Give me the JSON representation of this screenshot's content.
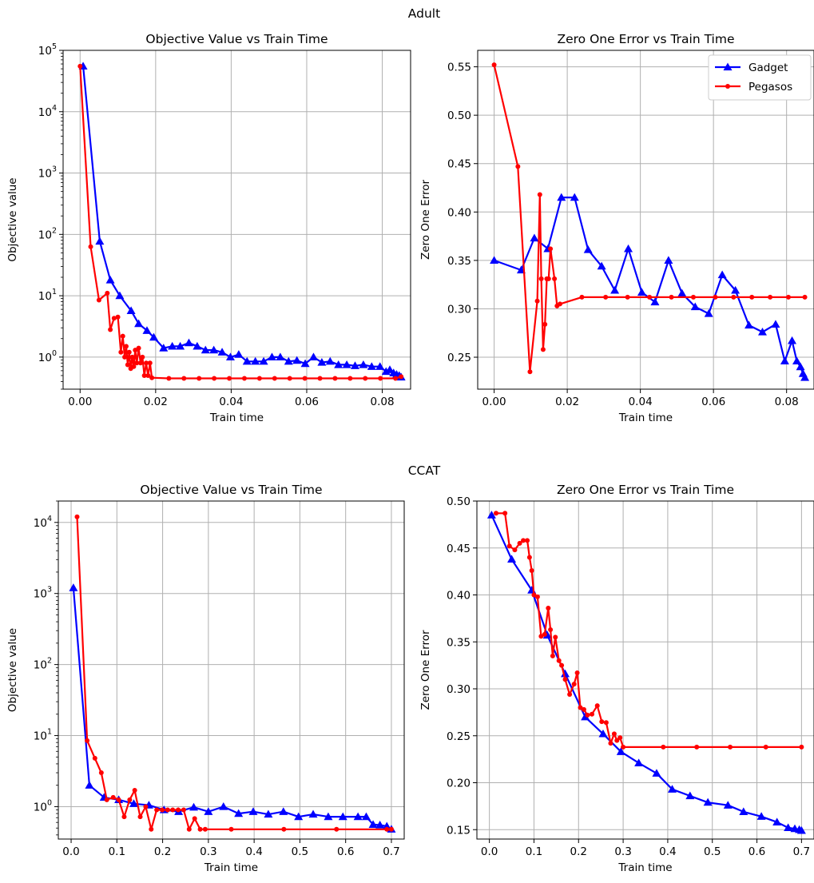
{
  "figures": [
    {
      "suptitle": "Adult"
    },
    {
      "suptitle": "CCAT"
    }
  ],
  "colors": {
    "gadget": "#0000ff",
    "pegasos": "#ff0000",
    "grid": "#b0b0b0"
  },
  "chart_data": [
    {
      "type": "line",
      "title": "Objective Value vs Train Time",
      "xlabel": "Train time",
      "ylabel": "Objective value",
      "yscale": "log",
      "xlim": [
        -0.0045,
        0.0875
      ],
      "ylim": [
        0.3,
        100000
      ],
      "xticks": [
        0.0,
        0.02,
        0.04,
        0.06,
        0.08
      ],
      "xtick_labels": [
        "0.00",
        "0.02",
        "0.04",
        "0.06",
        "0.08"
      ],
      "yticks": [
        1,
        10,
        100,
        1000,
        10000,
        100000
      ],
      "ytick_labels": [
        {
          "base": "10",
          "exp": "0"
        },
        {
          "base": "10",
          "exp": "1"
        },
        {
          "base": "10",
          "exp": "2"
        },
        {
          "base": "10",
          "exp": "3"
        },
        {
          "base": "10",
          "exp": "4"
        },
        {
          "base": "10",
          "exp": "5"
        }
      ],
      "grid": true,
      "series": [
        {
          "name": "Gadget",
          "color": "#0000ff",
          "marker": "triangle",
          "x": [
            0.0008,
            0.0052,
            0.008,
            0.0105,
            0.0135,
            0.0155,
            0.0177,
            0.0195,
            0.0221,
            0.0244,
            0.0265,
            0.0288,
            0.031,
            0.0332,
            0.0354,
            0.0376,
            0.0398,
            0.042,
            0.0442,
            0.0464,
            0.0486,
            0.0508,
            0.053,
            0.0552,
            0.0574,
            0.0596,
            0.0618,
            0.064,
            0.0662,
            0.0684,
            0.0706,
            0.0728,
            0.075,
            0.0772,
            0.0794,
            0.081,
            0.082,
            0.083,
            0.0838,
            0.0845,
            0.085
          ],
          "y": [
            55000,
            77,
            18,
            10,
            5.7,
            3.5,
            2.7,
            2.1,
            1.4,
            1.5,
            1.5,
            1.7,
            1.5,
            1.3,
            1.3,
            1.2,
            1.0,
            1.1,
            0.85,
            0.85,
            0.85,
            1.0,
            1.0,
            0.85,
            0.88,
            0.78,
            1.0,
            0.82,
            0.85,
            0.75,
            0.75,
            0.72,
            0.75,
            0.7,
            0.7,
            0.58,
            0.62,
            0.55,
            0.52,
            0.5,
            0.47
          ]
        },
        {
          "name": "Pegasos",
          "color": "#ff0000",
          "marker": "dot",
          "x": [
            0.0,
            0.0028,
            0.005,
            0.0072,
            0.008,
            0.009,
            0.01,
            0.0108,
            0.0113,
            0.0118,
            0.0122,
            0.0126,
            0.013,
            0.0134,
            0.0138,
            0.0142,
            0.0146,
            0.015,
            0.0155,
            0.016,
            0.0165,
            0.017,
            0.0175,
            0.018,
            0.0185,
            0.019,
            0.0235,
            0.0275,
            0.0315,
            0.0355,
            0.0395,
            0.0435,
            0.0475,
            0.0515,
            0.0555,
            0.0595,
            0.0635,
            0.0675,
            0.0715,
            0.0755,
            0.0795,
            0.0835,
            0.085
          ],
          "y": [
            55000,
            63,
            8.5,
            11,
            2.8,
            4.3,
            4.5,
            1.2,
            2.2,
            1.0,
            1.5,
            0.75,
            1.2,
            0.65,
            1.0,
            0.7,
            1.3,
            0.8,
            1.4,
            0.8,
            1.0,
            0.5,
            0.8,
            0.5,
            0.8,
            0.46,
            0.45,
            0.45,
            0.45,
            0.45,
            0.45,
            0.45,
            0.45,
            0.45,
            0.45,
            0.45,
            0.45,
            0.45,
            0.45,
            0.45,
            0.45,
            0.45,
            0.48
          ]
        }
      ]
    },
    {
      "type": "line",
      "title": "Zero One Error vs Train Time",
      "xlabel": "Train time",
      "ylabel": "Zero One Error",
      "xlim": [
        -0.0045,
        0.0875
      ],
      "ylim": [
        0.217,
        0.567
      ],
      "xticks": [
        0.0,
        0.02,
        0.04,
        0.06,
        0.08
      ],
      "xtick_labels": [
        "0.00",
        "0.02",
        "0.04",
        "0.06",
        "0.08"
      ],
      "yticks": [
        0.25,
        0.3,
        0.35,
        0.4,
        0.45,
        0.5,
        0.55
      ],
      "ytick_labels": [
        "0.25",
        "0.30",
        "0.35",
        "0.40",
        "0.45",
        "0.50",
        "0.55"
      ],
      "grid": true,
      "legend": "top-right",
      "series": [
        {
          "name": "Gadget",
          "color": "#0000ff",
          "marker": "triangle",
          "x": [
            0.0,
            0.0074,
            0.011,
            0.0147,
            0.0184,
            0.022,
            0.0257,
            0.0294,
            0.033,
            0.0367,
            0.0404,
            0.044,
            0.0477,
            0.0514,
            0.055,
            0.0587,
            0.0624,
            0.066,
            0.0697,
            0.0734,
            0.077,
            0.0795,
            0.0815,
            0.0828,
            0.0838,
            0.0845,
            0.085
          ],
          "y": [
            0.35,
            0.34,
            0.373,
            0.362,
            0.415,
            0.415,
            0.361,
            0.344,
            0.319,
            0.362,
            0.317,
            0.307,
            0.35,
            0.316,
            0.302,
            0.295,
            0.335,
            0.319,
            0.283,
            0.276,
            0.284,
            0.246,
            0.267,
            0.246,
            0.24,
            0.233,
            0.229
          ]
        },
        {
          "name": "Pegasos",
          "color": "#ff0000",
          "marker": "dot",
          "x": [
            0.0,
            0.0065,
            0.0098,
            0.0118,
            0.0125,
            0.0129,
            0.0134,
            0.0139,
            0.0144,
            0.0149,
            0.0154,
            0.0165,
            0.0172,
            0.018,
            0.024,
            0.0305,
            0.0365,
            0.0425,
            0.0485,
            0.0545,
            0.0605,
            0.0655,
            0.0705,
            0.0755,
            0.0805,
            0.085
          ],
          "y": [
            0.552,
            0.447,
            0.235,
            0.308,
            0.418,
            0.331,
            0.258,
            0.284,
            0.331,
            0.331,
            0.362,
            0.331,
            0.303,
            0.305,
            0.312,
            0.312,
            0.312,
            0.312,
            0.312,
            0.312,
            0.312,
            0.312,
            0.312,
            0.312,
            0.312,
            0.312
          ]
        }
      ]
    },
    {
      "type": "line",
      "title": "Objective Value vs Train Time",
      "xlabel": "Train time",
      "ylabel": "Objective value",
      "yscale": "log",
      "xlim": [
        -0.028,
        0.728
      ],
      "ylim": [
        0.35,
        20000
      ],
      "xticks": [
        0.0,
        0.1,
        0.2,
        0.3,
        0.4,
        0.5,
        0.6,
        0.7
      ],
      "xtick_labels": [
        "0.0",
        "0.1",
        "0.2",
        "0.3",
        "0.4",
        "0.5",
        "0.6",
        "0.7"
      ],
      "yticks": [
        1,
        10,
        100,
        1000,
        10000
      ],
      "ytick_labels": [
        {
          "base": "10",
          "exp": "0"
        },
        {
          "base": "10",
          "exp": "1"
        },
        {
          "base": "10",
          "exp": "2"
        },
        {
          "base": "10",
          "exp": "3"
        },
        {
          "base": "10",
          "exp": "4"
        }
      ],
      "grid": true,
      "series": [
        {
          "name": "Gadget",
          "color": "#0000ff",
          "marker": "triangle",
          "x": [
            0.005,
            0.04,
            0.072,
            0.104,
            0.137,
            0.17,
            0.203,
            0.235,
            0.268,
            0.3,
            0.333,
            0.366,
            0.398,
            0.431,
            0.464,
            0.497,
            0.529,
            0.562,
            0.594,
            0.627,
            0.645,
            0.66,
            0.675,
            0.69,
            0.7
          ],
          "y": [
            1200,
            2.0,
            1.35,
            1.25,
            1.1,
            1.05,
            0.9,
            0.85,
            0.98,
            0.85,
            1.0,
            0.8,
            0.85,
            0.78,
            0.85,
            0.72,
            0.78,
            0.72,
            0.72,
            0.72,
            0.72,
            0.56,
            0.55,
            0.53,
            0.48
          ]
        },
        {
          "name": "Pegasos",
          "color": "#ff0000",
          "marker": "dot",
          "x": [
            0.013,
            0.035,
            0.052,
            0.066,
            0.078,
            0.092,
            0.104,
            0.116,
            0.128,
            0.139,
            0.151,
            0.163,
            0.175,
            0.187,
            0.199,
            0.211,
            0.222,
            0.234,
            0.246,
            0.258,
            0.27,
            0.282,
            0.293,
            0.35,
            0.465,
            0.58,
            0.69,
            0.7
          ],
          "y": [
            12000,
            8.5,
            4.8,
            3.0,
            1.25,
            1.35,
            1.25,
            0.72,
            1.25,
            1.7,
            0.72,
            1.0,
            0.48,
            0.9,
            0.9,
            0.9,
            0.9,
            0.9,
            0.9,
            0.48,
            0.68,
            0.48,
            0.48,
            0.48,
            0.48,
            0.48,
            0.48,
            0.48
          ]
        }
      ]
    },
    {
      "type": "line",
      "title": "Zero One Error vs Train Time",
      "xlabel": "Train time",
      "ylabel": "Zero One Error",
      "xlim": [
        -0.028,
        0.728
      ],
      "ylim": [
        0.14,
        0.5
      ],
      "xticks": [
        0.0,
        0.1,
        0.2,
        0.3,
        0.4,
        0.5,
        0.6,
        0.7
      ],
      "xtick_labels": [
        "0.0",
        "0.1",
        "0.2",
        "0.3",
        "0.4",
        "0.5",
        "0.6",
        "0.7"
      ],
      "yticks": [
        0.15,
        0.2,
        0.25,
        0.3,
        0.35,
        0.4,
        0.45,
        0.5
      ],
      "ytick_labels": [
        "0.15",
        "0.20",
        "0.25",
        "0.30",
        "0.35",
        "0.40",
        "0.45",
        "0.50"
      ],
      "grid": true,
      "series": [
        {
          "name": "Gadget",
          "color": "#0000ff",
          "marker": "triangle",
          "x": [
            0.005,
            0.05,
            0.095,
            0.13,
            0.17,
            0.215,
            0.255,
            0.295,
            0.335,
            0.375,
            0.41,
            0.45,
            0.49,
            0.535,
            0.57,
            0.61,
            0.645,
            0.67,
            0.685,
            0.695,
            0.7
          ],
          "y": [
            0.485,
            0.438,
            0.405,
            0.357,
            0.316,
            0.27,
            0.252,
            0.233,
            0.221,
            0.21,
            0.193,
            0.186,
            0.179,
            0.176,
            0.169,
            0.164,
            0.158,
            0.152,
            0.151,
            0.15,
            0.149
          ],
          "marker_every": [
            0,
            1,
            2,
            3,
            4,
            5,
            6,
            7,
            8,
            9,
            10,
            11,
            12,
            13,
            14,
            15,
            16,
            17,
            18,
            19,
            20
          ]
        },
        {
          "name": "Pegasos",
          "color": "#ff0000",
          "marker": "dot",
          "x": [
            0.015,
            0.035,
            0.045,
            0.057,
            0.068,
            0.076,
            0.085,
            0.09,
            0.095,
            0.1,
            0.108,
            0.116,
            0.124,
            0.132,
            0.137,
            0.142,
            0.148,
            0.156,
            0.162,
            0.17,
            0.18,
            0.19,
            0.197,
            0.204,
            0.212,
            0.22,
            0.23,
            0.242,
            0.252,
            0.262,
            0.272,
            0.28,
            0.286,
            0.293,
            0.3,
            0.39,
            0.465,
            0.54,
            0.62,
            0.7
          ],
          "y": [
            0.487,
            0.487,
            0.452,
            0.448,
            0.455,
            0.458,
            0.458,
            0.44,
            0.426,
            0.4,
            0.398,
            0.356,
            0.358,
            0.386,
            0.363,
            0.335,
            0.355,
            0.33,
            0.325,
            0.31,
            0.294,
            0.305,
            0.317,
            0.28,
            0.278,
            0.272,
            0.273,
            0.282,
            0.265,
            0.264,
            0.242,
            0.252,
            0.245,
            0.248,
            0.238,
            0.238,
            0.238,
            0.238,
            0.238,
            0.238
          ]
        }
      ]
    }
  ]
}
